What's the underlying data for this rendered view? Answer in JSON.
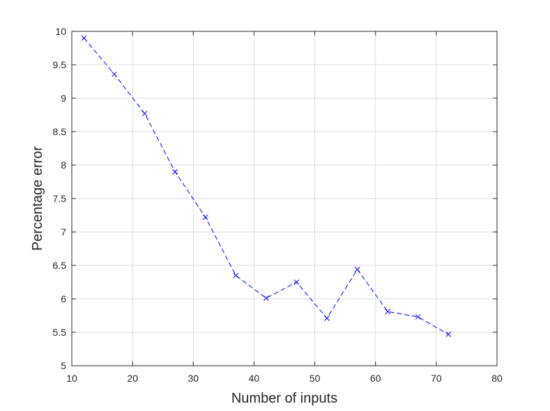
{
  "chart_data": {
    "type": "line",
    "title": "",
    "xlabel": "Number of inputs",
    "ylabel": "Percentage error",
    "xlim": [
      10,
      80
    ],
    "ylim": [
      5,
      10
    ],
    "xticks": [
      "10",
      "20",
      "30",
      "40",
      "50",
      "60",
      "70",
      "80"
    ],
    "yticks": [
      "5",
      "5.5",
      "6",
      "6.5",
      "7",
      "7.5",
      "8",
      "8.5",
      "9",
      "9.5",
      "10"
    ],
    "grid": true,
    "legend": "none",
    "line_style": "dashed",
    "marker": "x",
    "color": "#0000ff",
    "series": [
      {
        "x": [
          12,
          17,
          22,
          27,
          32,
          37,
          42,
          47,
          52,
          57,
          62,
          67,
          72
        ],
        "y": [
          9.9,
          9.36,
          8.77,
          7.9,
          7.22,
          6.35,
          6.01,
          6.25,
          5.71,
          6.44,
          5.81,
          5.73,
          5.47
        ]
      }
    ]
  }
}
